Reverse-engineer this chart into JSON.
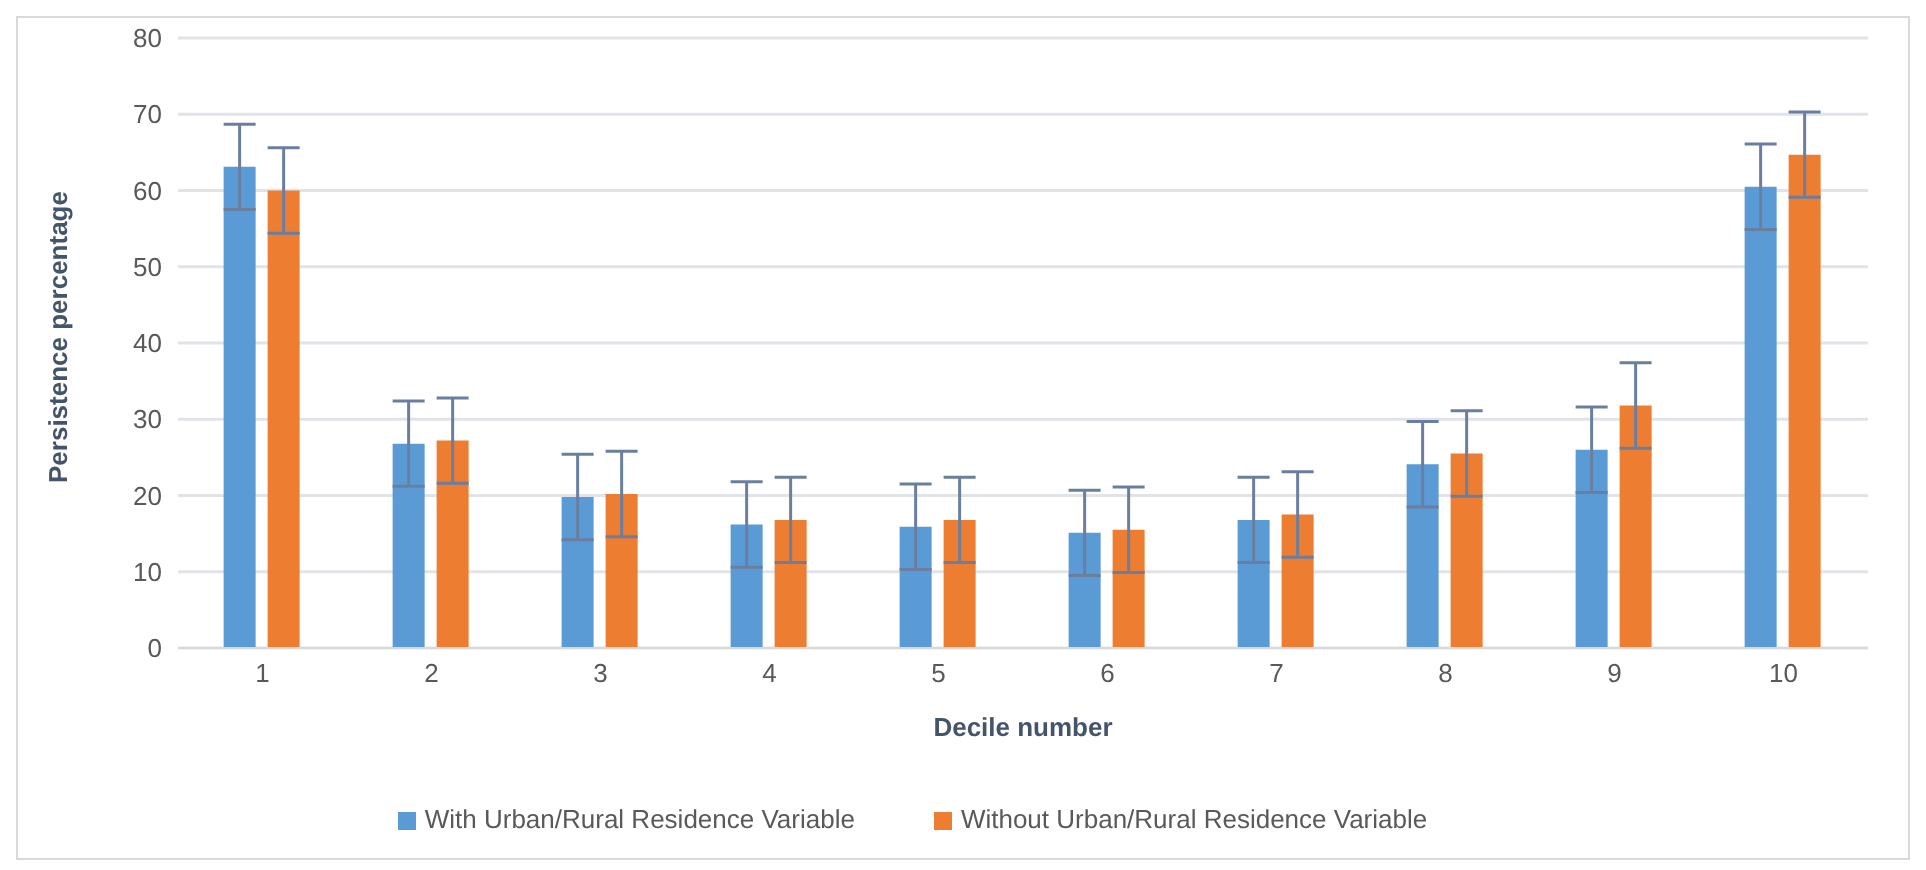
{
  "chart_data": {
    "type": "bar",
    "xlabel": "Decile number",
    "ylabel": "Persistence  percentage",
    "categories": [
      "1",
      "2",
      "3",
      "4",
      "5",
      "6",
      "7",
      "8",
      "9",
      "10"
    ],
    "series": [
      {
        "name": "With Urban/Rural Residence Variable",
        "color": "#5b9bd5",
        "values": [
          63.1,
          26.8,
          19.8,
          16.2,
          15.9,
          15.1,
          16.8,
          24.1,
          26.0,
          60.5
        ],
        "errors": [
          5.6,
          5.6,
          5.6,
          5.6,
          5.6,
          5.6,
          5.6,
          5.6,
          5.6,
          5.6
        ]
      },
      {
        "name": "Without Urban/Rural Residence Variable",
        "color": "#ed7d31",
        "values": [
          60.0,
          27.2,
          20.2,
          16.8,
          16.8,
          15.5,
          17.5,
          25.5,
          31.8,
          64.7
        ],
        "errors": [
          5.6,
          5.6,
          5.6,
          5.6,
          5.6,
          5.6,
          5.6,
          5.6,
          5.6,
          5.6
        ]
      }
    ],
    "ylim": [
      0,
      80
    ],
    "yticks": [
      0,
      10,
      20,
      30,
      40,
      50,
      60,
      70,
      80
    ],
    "grid": "y",
    "legend": "bottom"
  }
}
